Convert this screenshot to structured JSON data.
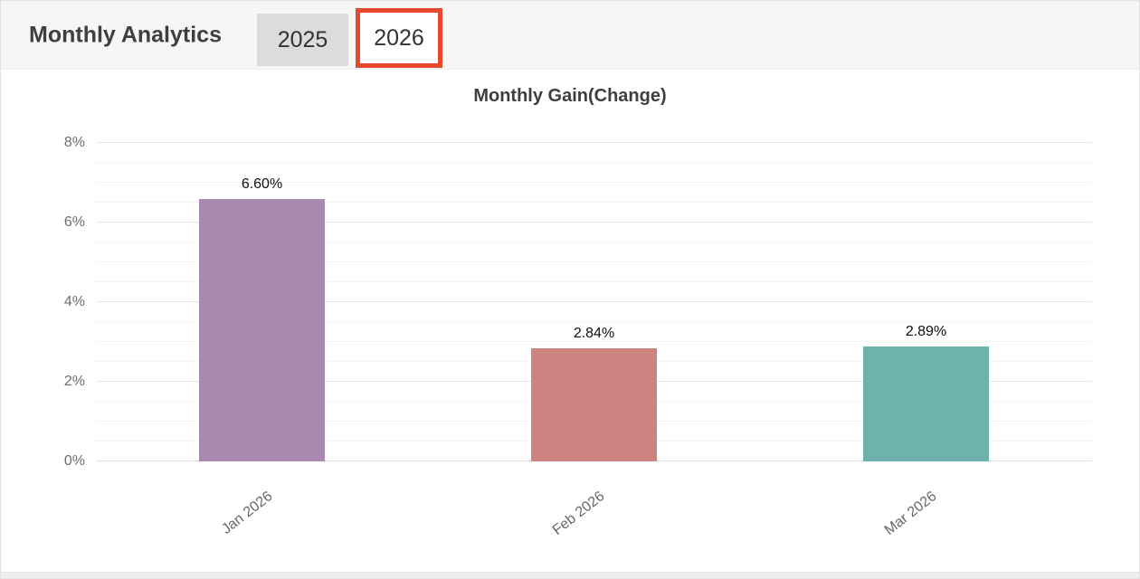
{
  "header": {
    "title": "Monthly Analytics",
    "tabs": [
      {
        "label": "2025",
        "selected": false
      },
      {
        "label": "2026",
        "selected": true
      }
    ],
    "highlight_color": "#e6492d"
  },
  "chart_data": {
    "type": "bar",
    "title": "Monthly Gain(Change)",
    "categories": [
      "Jan 2026",
      "Feb 2026",
      "Mar 2026"
    ],
    "values": [
      6.6,
      2.84,
      2.89
    ],
    "value_labels": [
      "6.60%",
      "2.84%",
      "2.89%"
    ],
    "bar_colors": [
      "#aa89b0",
      "#cd8481",
      "#6fb1ad"
    ],
    "xlabel": "",
    "ylabel": "",
    "ylim": [
      0,
      8
    ],
    "yticks": [
      0,
      2,
      4,
      6,
      8
    ],
    "ytick_labels": [
      "0%",
      "2%",
      "4%",
      "6%",
      "8%"
    ],
    "minor_tick_step": 0.5,
    "grid": true,
    "legend": false
  }
}
